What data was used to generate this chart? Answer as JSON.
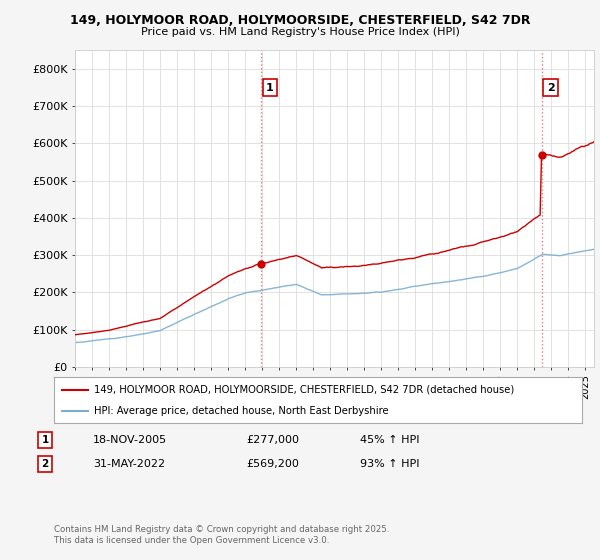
{
  "title_line1": "149, HOLYMOOR ROAD, HOLYMOORSIDE, CHESTERFIELD, S42 7DR",
  "title_line2": "Price paid vs. HM Land Registry's House Price Index (HPI)",
  "legend_line1": "149, HOLYMOOR ROAD, HOLYMOORSIDE, CHESTERFIELD, S42 7DR (detached house)",
  "legend_line2": "HPI: Average price, detached house, North East Derbyshire",
  "footer": "Contains HM Land Registry data © Crown copyright and database right 2025.\nThis data is licensed under the Open Government Licence v3.0.",
  "annotation1_label": "1",
  "annotation1_date": "18-NOV-2005",
  "annotation1_price": "£277,000",
  "annotation1_hpi": "45% ↑ HPI",
  "annotation2_label": "2",
  "annotation2_date": "31-MAY-2022",
  "annotation2_price": "£569,200",
  "annotation2_hpi": "93% ↑ HPI",
  "red_color": "#cc0000",
  "blue_color": "#7aadd4",
  "grid_color": "#dddddd",
  "dashed_color": "#e08080",
  "bg_color": "#f5f5f5",
  "plot_bg": "#ffffff",
  "ylim_max": 850000,
  "yticks": [
    0,
    100000,
    200000,
    300000,
    400000,
    500000,
    600000,
    700000,
    800000
  ],
  "ytick_labels": [
    "£0",
    "£100K",
    "£200K",
    "£300K",
    "£400K",
    "£500K",
    "£600K",
    "£700K",
    "£800K"
  ],
  "purchase1_year": 2005.88,
  "purchase1_price": 277000,
  "purchase2_year": 2022.42,
  "purchase2_price": 569200,
  "xmin": 1995,
  "xmax": 2025.5
}
